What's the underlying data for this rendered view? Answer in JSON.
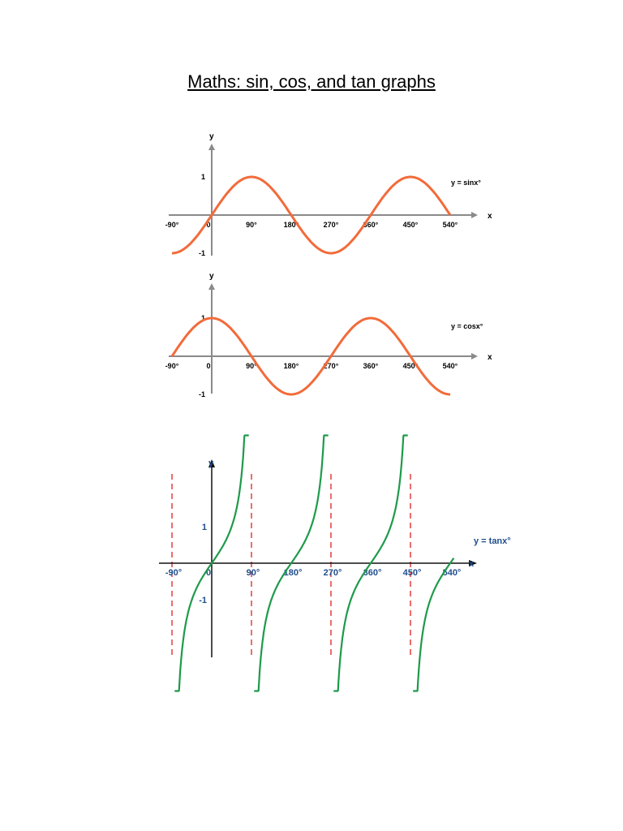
{
  "title": "Maths: sin, cos, and tan graphs",
  "chart_data": [
    {
      "type": "line",
      "function": "sin",
      "series": [
        {
          "name": "y = sinx°"
        }
      ],
      "x": [
        -90,
        -60,
        -30,
        0,
        30,
        60,
        90,
        120,
        150,
        180,
        210,
        240,
        270,
        300,
        330,
        360,
        390,
        420,
        450,
        480,
        510,
        540
      ],
      "values": [
        -1,
        -0.87,
        -0.5,
        0,
        0.5,
        0.87,
        1,
        0.87,
        0.5,
        0,
        -0.5,
        -0.87,
        -1,
        -0.87,
        -0.5,
        0,
        0.5,
        0.87,
        1,
        0.87,
        0.5,
        0
      ],
      "xlabel": "x",
      "ylabel": "y",
      "xlim": [
        -90,
        540
      ],
      "ylim": [
        -1,
        1
      ],
      "x_ticks": [
        "-90°",
        "0",
        "90°",
        "180°",
        "270°",
        "360°",
        "450°",
        "540°"
      ],
      "y_ticks": [
        "1",
        "-1"
      ],
      "color": "#f26b3a"
    },
    {
      "type": "line",
      "function": "cos",
      "series": [
        {
          "name": "y = cosx°"
        }
      ],
      "x": [
        -90,
        -60,
        -30,
        0,
        30,
        60,
        90,
        120,
        150,
        180,
        210,
        240,
        270,
        300,
        330,
        360,
        390,
        420,
        450,
        480,
        510,
        540
      ],
      "values": [
        0,
        0.5,
        0.87,
        1,
        0.87,
        0.5,
        0,
        -0.5,
        -0.87,
        -1,
        -0.87,
        -0.5,
        0,
        0.5,
        0.87,
        1,
        0.87,
        0.5,
        0,
        -0.5,
        -0.87,
        -1
      ],
      "xlabel": "x",
      "ylabel": "y",
      "xlim": [
        -90,
        540
      ],
      "ylim": [
        -1,
        1
      ],
      "x_ticks": [
        "-90°",
        "0",
        "90°",
        "180°",
        "270°",
        "360°",
        "450°",
        "540°"
      ],
      "y_ticks": [
        "1",
        "-1"
      ],
      "color": "#f26b3a"
    },
    {
      "type": "line",
      "function": "tan",
      "series": [
        {
          "name": "y = tanx°"
        }
      ],
      "asymptotes": [
        -90,
        90,
        270,
        450
      ],
      "xlabel": "x",
      "ylabel": "y",
      "xlim": [
        -90,
        540
      ],
      "ylim": [
        -3.5,
        3.5
      ],
      "x_ticks": [
        "-90°",
        "0",
        "90°",
        "180°",
        "270°",
        "360°",
        "450°",
        "540°"
      ],
      "y_ticks": [
        "1",
        "-1"
      ],
      "color": "#1e9a4a",
      "asymptote_color": "#e02020",
      "label_color": "#1f4e8c"
    }
  ]
}
